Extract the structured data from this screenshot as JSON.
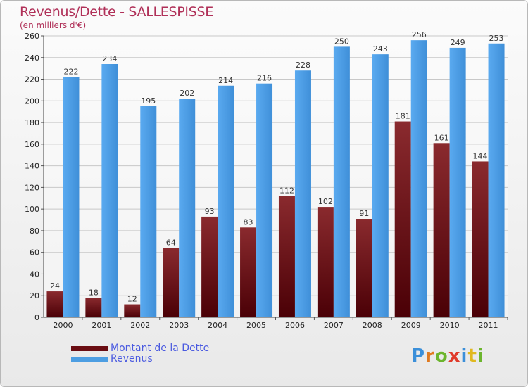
{
  "title": "Revenus/Dette - SALLESPISSE",
  "subtitle": "(en milliers d'€)",
  "logo_text": "Proxiti",
  "legend": [
    {
      "label": "Montant de la Dette",
      "color": "#7a1016"
    },
    {
      "label": "Revenus",
      "color": "#4d9ee2"
    }
  ],
  "chart_data": {
    "type": "bar",
    "categories": [
      "2000",
      "2001",
      "2002",
      "2003",
      "2004",
      "2005",
      "2006",
      "2007",
      "2008",
      "2009",
      "2010",
      "2011"
    ],
    "series": [
      {
        "name": "Montant de la Dette",
        "color": "#7a1016",
        "values": [
          24,
          18,
          12,
          64,
          93,
          83,
          112,
          102,
          91,
          181,
          161,
          144
        ]
      },
      {
        "name": "Revenus",
        "color": "#4d9ee2",
        "values": [
          222,
          234,
          195,
          202,
          214,
          216,
          228,
          250,
          243,
          256,
          249,
          253
        ]
      }
    ],
    "ylim": [
      0,
      260
    ],
    "yticks": [
      0,
      20,
      40,
      60,
      80,
      100,
      120,
      140,
      160,
      180,
      200,
      220,
      240,
      260
    ],
    "grid": true
  }
}
